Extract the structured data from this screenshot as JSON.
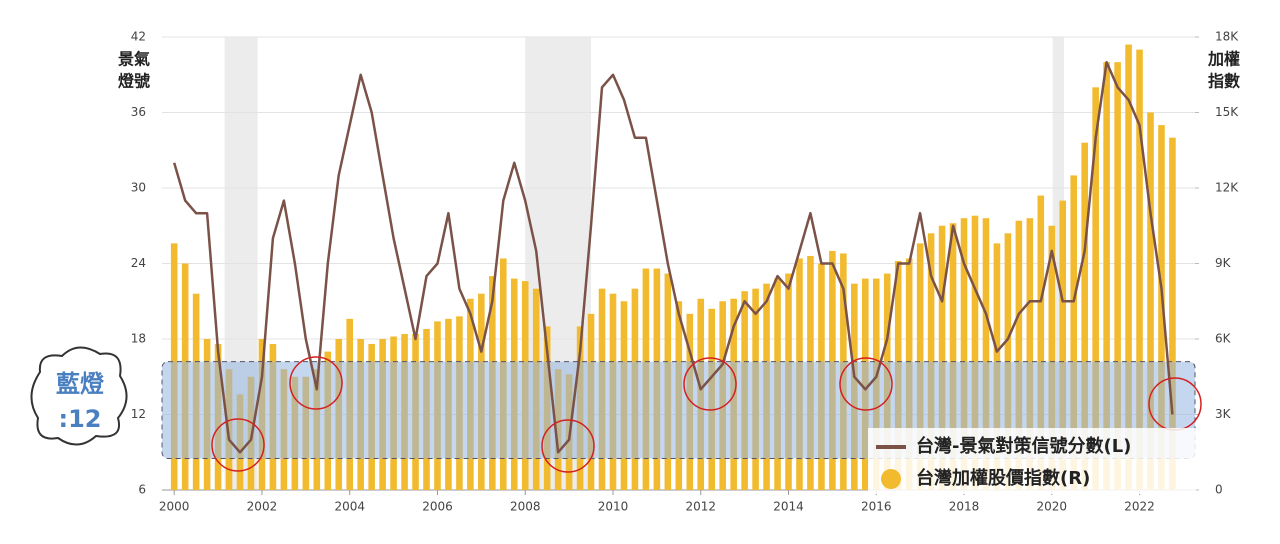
{
  "chart_data": {
    "type": "combo",
    "y_label": [
      "景氣",
      "燈號"
    ],
    "y2_label": [
      "加權",
      "指數"
    ],
    "badge": [
      "藍燈",
      ":12"
    ],
    "x": [
      2000,
      2000.25,
      2000.5,
      2000.75,
      2001,
      2001.25,
      2001.5,
      2001.75,
      2002,
      2002.25,
      2002.5,
      2002.75,
      2003,
      2003.25,
      2003.5,
      2003.75,
      2004,
      2004.25,
      2004.5,
      2004.75,
      2005,
      2005.25,
      2005.5,
      2005.75,
      2006,
      2006.25,
      2006.5,
      2006.75,
      2007,
      2007.25,
      2007.5,
      2007.75,
      2008,
      2008.25,
      2008.5,
      2008.75,
      2009,
      2009.25,
      2009.5,
      2009.75,
      2010,
      2010.25,
      2010.5,
      2010.75,
      2011,
      2011.25,
      2011.5,
      2011.75,
      2012,
      2012.25,
      2012.5,
      2012.75,
      2013,
      2013.25,
      2013.5,
      2013.75,
      2014,
      2014.25,
      2014.5,
      2014.75,
      2015,
      2015.25,
      2015.5,
      2015.75,
      2016,
      2016.25,
      2016.5,
      2016.75,
      2017,
      2017.25,
      2017.5,
      2017.75,
      2018,
      2018.25,
      2018.5,
      2018.75,
      2019,
      2019.25,
      2019.5,
      2019.75,
      2020,
      2020.25,
      2020.5,
      2020.75,
      2021,
      2021.25,
      2021.5,
      2021.75,
      2022,
      2022.25,
      2022.5,
      2022.75
    ],
    "series": [
      {
        "name": "台灣-景氣對策信號分數(L)",
        "type": "line",
        "color": "#7b5248",
        "values": [
          32,
          29,
          28,
          28,
          17,
          10,
          9,
          10,
          15,
          26,
          29,
          24,
          18,
          14,
          24,
          31,
          35,
          39,
          36,
          31,
          26,
          22,
          18,
          23,
          24,
          28,
          22,
          20,
          17,
          21,
          29,
          32,
          29,
          25,
          17,
          9,
          10,
          17,
          27,
          38,
          39,
          37,
          34,
          34,
          29,
          24,
          20,
          17,
          14,
          15,
          16,
          19,
          21,
          20,
          21,
          23,
          22,
          25,
          28,
          24,
          24,
          22,
          15,
          14,
          15,
          18,
          24,
          24,
          28,
          23,
          21,
          27,
          24,
          22,
          20,
          17,
          18,
          20,
          21,
          21,
          25,
          21,
          21,
          25,
          34,
          40,
          38,
          37,
          35,
          28,
          22,
          12
        ]
      },
      {
        "name": "台灣加權股價指數(R)",
        "type": "bar",
        "color": "#f2bb2f",
        "axis": "y2",
        "values": [
          9800,
          9000,
          7800,
          6000,
          5800,
          4800,
          3800,
          4500,
          6000,
          5800,
          4800,
          4500,
          4500,
          4800,
          5500,
          6000,
          6800,
          6000,
          5800,
          6000,
          6100,
          6200,
          6200,
          6400,
          6700,
          6800,
          6900,
          7600,
          7800,
          8500,
          9200,
          8400,
          8300,
          8000,
          6500,
          4800,
          4600,
          6500,
          7000,
          8000,
          7800,
          7500,
          8000,
          8800,
          8800,
          8600,
          7500,
          7000,
          7600,
          7200,
          7500,
          7600,
          7900,
          8000,
          8200,
          8400,
          8600,
          9200,
          9300,
          9000,
          9500,
          9400,
          8200,
          8400,
          8400,
          8600,
          9100,
          9200,
          9800,
          10200,
          10500,
          10600,
          10800,
          10900,
          10800,
          9800,
          10200,
          10700,
          10800,
          11700,
          10500,
          11500,
          12500,
          13800,
          16000,
          17000,
          17000,
          17700,
          17500,
          15000,
          14500,
          14000
        ]
      }
    ],
    "xlim": [
      1999.95,
      2023.15
    ],
    "xticks": [
      2000,
      2002,
      2004,
      2006,
      2008,
      2010,
      2012,
      2014,
      2016,
      2018,
      2020,
      2022
    ],
    "ylim": [
      6,
      42
    ],
    "yticks": [
      6,
      12,
      18,
      24,
      30,
      36,
      42
    ],
    "y2lim": [
      0,
      18000
    ],
    "y2ticks": [
      0,
      {
        "value": 3000,
        "label": "3K"
      },
      {
        "value": 6000,
        "label": "6K"
      },
      {
        "value": 9000,
        "label": "9K"
      },
      {
        "value": 12000,
        "label": "12K"
      },
      {
        "value": 15000,
        "label": "15K"
      },
      {
        "value": 18000,
        "label": "18K"
      }
    ],
    "recessions": [
      [
        2001.15,
        2001.9
      ],
      [
        2008.0,
        2009.5
      ],
      [
        2020.02,
        2020.28
      ]
    ],
    "highlight_band": [
      8.5,
      16.2
    ],
    "grid": true,
    "legend": "bottom-right"
  }
}
